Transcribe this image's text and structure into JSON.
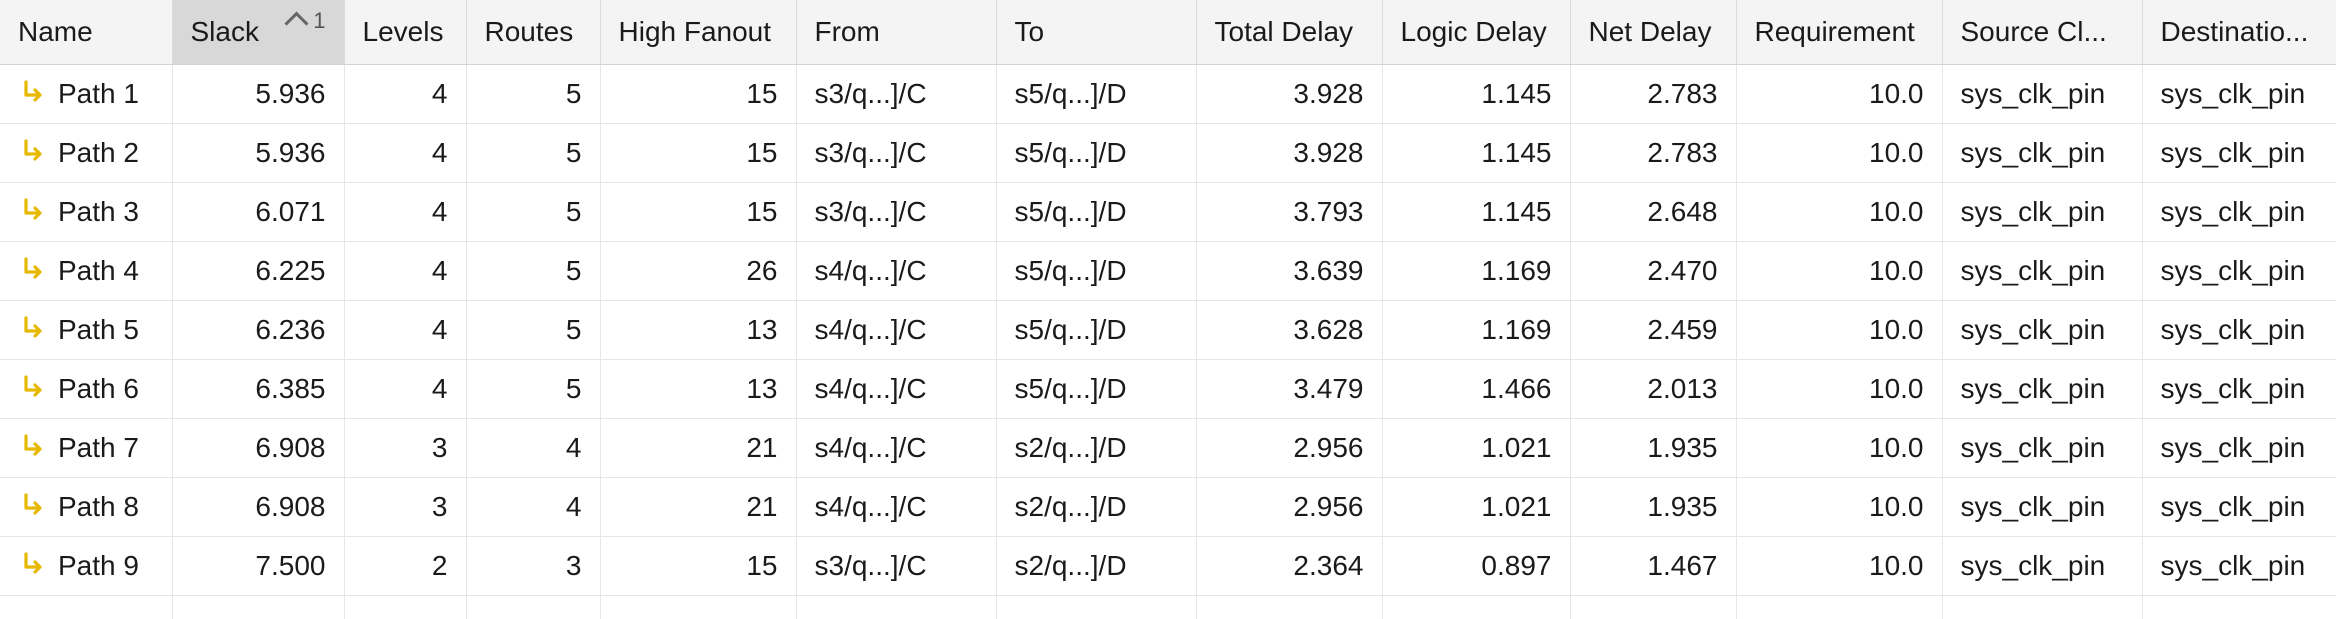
{
  "columns": [
    {
      "label": "Name"
    },
    {
      "label": "Slack",
      "sort_indicator": "1"
    },
    {
      "label": "Levels"
    },
    {
      "label": "Routes"
    },
    {
      "label": "High Fanout"
    },
    {
      "label": "From"
    },
    {
      "label": "To"
    },
    {
      "label": "Total Delay"
    },
    {
      "label": "Logic Delay"
    },
    {
      "label": "Net Delay"
    },
    {
      "label": "Requirement"
    },
    {
      "label": "Source Cl..."
    },
    {
      "label": "Destinatio..."
    }
  ],
  "rows": [
    {
      "name": "Path 1",
      "slack": "5.936",
      "levels": "4",
      "routes": "5",
      "fanout": "15",
      "from": "s3/q...]/C",
      "to": "s5/q...]/D",
      "total": "3.928",
      "logic": "1.145",
      "net": "2.783",
      "req": "10.0",
      "src": "sys_clk_pin",
      "dst": "sys_clk_pin"
    },
    {
      "name": "Path 2",
      "slack": "5.936",
      "levels": "4",
      "routes": "5",
      "fanout": "15",
      "from": "s3/q...]/C",
      "to": "s5/q...]/D",
      "total": "3.928",
      "logic": "1.145",
      "net": "2.783",
      "req": "10.0",
      "src": "sys_clk_pin",
      "dst": "sys_clk_pin"
    },
    {
      "name": "Path 3",
      "slack": "6.071",
      "levels": "4",
      "routes": "5",
      "fanout": "15",
      "from": "s3/q...]/C",
      "to": "s5/q...]/D",
      "total": "3.793",
      "logic": "1.145",
      "net": "2.648",
      "req": "10.0",
      "src": "sys_clk_pin",
      "dst": "sys_clk_pin"
    },
    {
      "name": "Path 4",
      "slack": "6.225",
      "levels": "4",
      "routes": "5",
      "fanout": "26",
      "from": "s4/q...]/C",
      "to": "s5/q...]/D",
      "total": "3.639",
      "logic": "1.169",
      "net": "2.470",
      "req": "10.0",
      "src": "sys_clk_pin",
      "dst": "sys_clk_pin"
    },
    {
      "name": "Path 5",
      "slack": "6.236",
      "levels": "4",
      "routes": "5",
      "fanout": "13",
      "from": "s4/q...]/C",
      "to": "s5/q...]/D",
      "total": "3.628",
      "logic": "1.169",
      "net": "2.459",
      "req": "10.0",
      "src": "sys_clk_pin",
      "dst": "sys_clk_pin"
    },
    {
      "name": "Path 6",
      "slack": "6.385",
      "levels": "4",
      "routes": "5",
      "fanout": "13",
      "from": "s4/q...]/C",
      "to": "s5/q...]/D",
      "total": "3.479",
      "logic": "1.466",
      "net": "2.013",
      "req": "10.0",
      "src": "sys_clk_pin",
      "dst": "sys_clk_pin"
    },
    {
      "name": "Path 7",
      "slack": "6.908",
      "levels": "3",
      "routes": "4",
      "fanout": "21",
      "from": "s4/q...]/C",
      "to": "s2/q...]/D",
      "total": "2.956",
      "logic": "1.021",
      "net": "1.935",
      "req": "10.0",
      "src": "sys_clk_pin",
      "dst": "sys_clk_pin"
    },
    {
      "name": "Path 8",
      "slack": "6.908",
      "levels": "3",
      "routes": "4",
      "fanout": "21",
      "from": "s4/q...]/C",
      "to": "s2/q...]/D",
      "total": "2.956",
      "logic": "1.021",
      "net": "1.935",
      "req": "10.0",
      "src": "sys_clk_pin",
      "dst": "sys_clk_pin"
    },
    {
      "name": "Path 9",
      "slack": "7.500",
      "levels": "2",
      "routes": "3",
      "fanout": "15",
      "from": "s3/q...]/C",
      "to": "s2/q...]/D",
      "total": "2.364",
      "logic": "0.897",
      "net": "1.467",
      "req": "10.0",
      "src": "sys_clk_pin",
      "dst": "sys_clk_pin"
    }
  ],
  "icon": {
    "path_icon": "path-arrow-icon",
    "color": "#e6b800"
  }
}
